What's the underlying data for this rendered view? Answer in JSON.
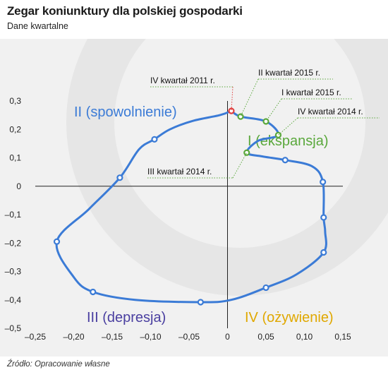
{
  "header": {
    "title": "Zegar koniunktury dla polskiej gospodarki",
    "subtitle": "Dane kwartalne"
  },
  "footer": {
    "source": "Źródło: Opracowanie własne"
  },
  "colors": {
    "line": "#3b7bd6",
    "marker_default": "#3b7bd6",
    "marker_highlight_red": "#e04040",
    "marker_highlight_green": "#5aa83c",
    "quadrant_I": "#5aa83c",
    "quadrant_II": "#3b7bd6",
    "quadrant_III": "#4a3fa0",
    "quadrant_IV": "#e0a800"
  },
  "chart_data": {
    "type": "line",
    "xlim": [
      -0.25,
      0.15
    ],
    "ylim": [
      -0.5,
      0.3
    ],
    "x_ticks": [
      -0.25,
      -0.2,
      -0.15,
      -0.1,
      -0.05,
      0,
      0.05,
      0.1,
      0.15
    ],
    "x_tick_labels": [
      "–0,25",
      "–0,20",
      "–0,15",
      "–0,10",
      "–0,05",
      "0",
      "0,05",
      "0,10",
      "0,15"
    ],
    "y_ticks": [
      0.3,
      0.2,
      0.1,
      0,
      -0.1,
      -0.2,
      -0.3,
      -0.4,
      -0.5
    ],
    "y_tick_labels": [
      "0,3",
      "0,2",
      "0,1",
      "0",
      "–0,1",
      "–0,2",
      "–0,3",
      "–0,4",
      "–0,5"
    ],
    "grid": false,
    "series": [
      {
        "points": [
          {
            "x": 0.005,
            "y": 0.265
          },
          {
            "x": -0.01,
            "y": 0.25
          },
          {
            "x": -0.045,
            "y": 0.23
          },
          {
            "x": -0.075,
            "y": 0.2
          },
          {
            "x": -0.095,
            "y": 0.165
          },
          {
            "x": -0.115,
            "y": 0.13
          },
          {
            "x": -0.14,
            "y": 0.03
          },
          {
            "x": -0.18,
            "y": -0.08
          },
          {
            "x": -0.222,
            "y": -0.195
          },
          {
            "x": -0.2,
            "y": -0.32
          },
          {
            "x": -0.175,
            "y": -0.372
          },
          {
            "x": -0.12,
            "y": -0.4
          },
          {
            "x": -0.035,
            "y": -0.408
          },
          {
            "x": 0.005,
            "y": -0.4
          },
          {
            "x": 0.05,
            "y": -0.357
          },
          {
            "x": 0.09,
            "y": -0.31
          },
          {
            "x": 0.125,
            "y": -0.233
          },
          {
            "x": 0.127,
            "y": -0.16
          },
          {
            "x": 0.125,
            "y": -0.11
          },
          {
            "x": 0.124,
            "y": 0.015
          },
          {
            "x": 0.11,
            "y": 0.07
          },
          {
            "x": 0.075,
            "y": 0.092
          },
          {
            "x": 0.045,
            "y": 0.105
          },
          {
            "x": 0.025,
            "y": 0.118
          },
          {
            "x": 0.04,
            "y": 0.16
          },
          {
            "x": 0.066,
            "y": 0.18
          },
          {
            "x": 0.05,
            "y": 0.228
          },
          {
            "x": 0.017,
            "y": 0.245
          }
        ],
        "markers": [
          {
            "x": 0.005,
            "y": 0.265,
            "color": "red"
          },
          {
            "x": -0.095,
            "y": 0.165,
            "color": "blue"
          },
          {
            "x": -0.14,
            "y": 0.03,
            "color": "blue"
          },
          {
            "x": -0.222,
            "y": -0.195,
            "color": "blue"
          },
          {
            "x": -0.175,
            "y": -0.372,
            "color": "blue"
          },
          {
            "x": -0.035,
            "y": -0.408,
            "color": "blue"
          },
          {
            "x": 0.05,
            "y": -0.357,
            "color": "blue"
          },
          {
            "x": 0.125,
            "y": -0.233,
            "color": "blue"
          },
          {
            "x": 0.125,
            "y": -0.11,
            "color": "blue"
          },
          {
            "x": 0.124,
            "y": 0.015,
            "color": "blue"
          },
          {
            "x": 0.075,
            "y": 0.092,
            "color": "blue"
          },
          {
            "x": 0.025,
            "y": 0.118,
            "color": "green"
          },
          {
            "x": 0.066,
            "y": 0.18,
            "color": "green"
          },
          {
            "x": 0.05,
            "y": 0.228,
            "color": "green"
          },
          {
            "x": 0.017,
            "y": 0.245,
            "color": "green"
          }
        ]
      }
    ],
    "annotations": [
      {
        "text": "IV kwartał 2011 r.",
        "point_index": 0
      },
      {
        "text": "II kwartał 2015 r.",
        "point_index": 14
      },
      {
        "text": "I kwartał 2015 r.",
        "point_index": 13
      },
      {
        "text": "IV kwartał 2014 r.",
        "point_index": 12
      },
      {
        "text": "III kwartał 2014 r.",
        "point_index": 11
      }
    ],
    "quadrant_labels": [
      {
        "text": "II (spowolnienie)",
        "quadrant": "II"
      },
      {
        "text": "I (ekspansja)",
        "quadrant": "I"
      },
      {
        "text": "III (depresja)",
        "quadrant": "III"
      },
      {
        "text": "IV (ożywienie)",
        "quadrant": "IV"
      }
    ]
  }
}
